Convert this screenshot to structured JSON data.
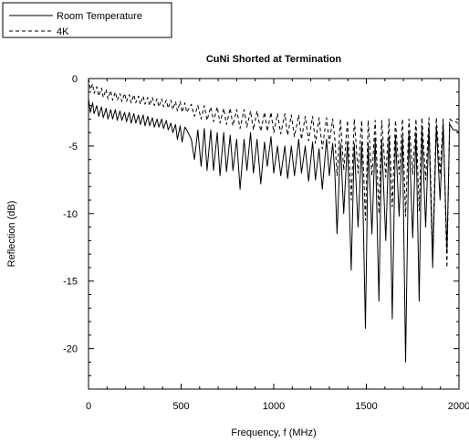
{
  "chart_data": {
    "type": "line",
    "title": "CuNi Shorted at Termination",
    "xlabel": "Frequency, f (MHz)",
    "ylabel": "Reflection (dB)",
    "xlim": [
      0,
      2000
    ],
    "ylim": [
      -23,
      0
    ],
    "x_ticks": [
      0,
      500,
      1000,
      1500,
      2000
    ],
    "x_tick_labels": [
      "0",
      "500",
      "1000",
      "1500",
      "2000"
    ],
    "y_ticks": [
      0,
      -5,
      -10,
      -15,
      -20
    ],
    "y_tick_labels": [
      "0",
      "-5",
      "-10",
      "-15",
      "-20"
    ],
    "grid": false,
    "legend_position": "top-left, outside plot",
    "series": [
      {
        "name": "Room Temperature",
        "line_style": "solid",
        "color": "#000000",
        "x": [
          0,
          10,
          22,
          30,
          45,
          55,
          70,
          80,
          95,
          105,
          120,
          130,
          145,
          155,
          170,
          180,
          195,
          205,
          220,
          230,
          245,
          255,
          270,
          280,
          295,
          305,
          320,
          330,
          345,
          355,
          370,
          380,
          395,
          405,
          420,
          430,
          445,
          455,
          470,
          480,
          495,
          505,
          520,
          530,
          555,
          572,
          590,
          608,
          625,
          640,
          660,
          675,
          695,
          710,
          730,
          745,
          765,
          780,
          800,
          818,
          840,
          855,
          875,
          890,
          910,
          930,
          950,
          965,
          985,
          1000,
          1020,
          1038,
          1060,
          1075,
          1095,
          1112,
          1135,
          1150,
          1170,
          1188,
          1210,
          1225,
          1245,
          1262,
          1285,
          1300,
          1318,
          1330,
          1342,
          1360,
          1378,
          1398,
          1418,
          1435,
          1455,
          1475,
          1495,
          1510,
          1530,
          1548,
          1568,
          1583,
          1605,
          1622,
          1640,
          1657,
          1677,
          1695,
          1712,
          1730,
          1750,
          1768,
          1785,
          1800,
          1820,
          1838,
          1858,
          1878,
          1898,
          1915,
          1935,
          1950,
          1970,
          1985,
          2000
        ],
        "y": [
          -1.5,
          -2.5,
          -1.8,
          -2.6,
          -2.0,
          -2.8,
          -2.1,
          -2.9,
          -2.2,
          -3.0,
          -2.3,
          -3.0,
          -2.3,
          -3.1,
          -2.4,
          -3.1,
          -2.5,
          -3.2,
          -2.5,
          -3.3,
          -2.6,
          -3.3,
          -2.7,
          -3.4,
          -2.7,
          -3.5,
          -2.8,
          -3.5,
          -2.9,
          -3.6,
          -3.0,
          -3.6,
          -3.0,
          -3.7,
          -3.1,
          -3.8,
          -3.3,
          -4.0,
          -3.4,
          -4.5,
          -3.5,
          -4.7,
          -3.6,
          -3.8,
          -4.5,
          -6.0,
          -3.8,
          -6.5,
          -3.7,
          -6.8,
          -3.8,
          -6.8,
          -4.0,
          -7.2,
          -4.0,
          -6.9,
          -4.2,
          -6.8,
          -4.5,
          -8.2,
          -4.5,
          -6.8,
          -4.0,
          -7.0,
          -4.5,
          -7.8,
          -4.7,
          -6.5,
          -4.3,
          -7.0,
          -5.0,
          -7.2,
          -5.0,
          -7.4,
          -5.0,
          -7.2,
          -4.5,
          -7.0,
          -5.0,
          -7.6,
          -4.7,
          -7.5,
          -5.2,
          -8.2,
          -4.5,
          -7.2,
          -4.8,
          -7.0,
          -11.5,
          -4.8,
          -10.0,
          -4.7,
          -14.2,
          -4.8,
          -11.0,
          -4.7,
          -18.5,
          -4.8,
          -11.5,
          -4.4,
          -16.5,
          -4.5,
          -12.0,
          -4.3,
          -17.8,
          -4.2,
          -10.2,
          -4.3,
          -21.0,
          -4.0,
          -11.8,
          -4.0,
          -16.5,
          -3.7,
          -11.0,
          -3.6,
          -14.0,
          -3.5,
          -9.0,
          -3.4,
          -12.8,
          -3.4,
          -3.8,
          -3.8,
          -4.0
        ]
      },
      {
        "name": "4K",
        "line_style": "dashed",
        "color": "#000000",
        "x": [
          0,
          10,
          22,
          30,
          45,
          55,
          70,
          80,
          95,
          105,
          120,
          130,
          145,
          155,
          170,
          180,
          195,
          205,
          220,
          230,
          245,
          255,
          270,
          280,
          295,
          305,
          320,
          330,
          345,
          355,
          370,
          380,
          395,
          405,
          420,
          430,
          445,
          455,
          470,
          480,
          495,
          505,
          520,
          530,
          555,
          572,
          590,
          608,
          625,
          640,
          660,
          675,
          695,
          710,
          730,
          745,
          765,
          780,
          800,
          818,
          840,
          855,
          875,
          890,
          910,
          930,
          950,
          965,
          985,
          1000,
          1020,
          1038,
          1060,
          1075,
          1095,
          1112,
          1135,
          1150,
          1170,
          1188,
          1210,
          1225,
          1245,
          1262,
          1285,
          1300,
          1318,
          1330,
          1342,
          1360,
          1378,
          1398,
          1418,
          1435,
          1455,
          1475,
          1495,
          1510,
          1530,
          1548,
          1568,
          1583,
          1605,
          1622,
          1640,
          1657,
          1677,
          1695,
          1712,
          1730,
          1750,
          1768,
          1785,
          1800,
          1820,
          1838,
          1858,
          1878,
          1898,
          1915,
          1935,
          1950,
          1970,
          1985,
          2000
        ],
        "y": [
          0.0,
          -0.8,
          -0.4,
          -1.1,
          -0.6,
          -1.3,
          -0.7,
          -1.4,
          -0.8,
          -1.5,
          -0.9,
          -1.6,
          -1.0,
          -1.6,
          -1.1,
          -1.7,
          -1.1,
          -1.7,
          -1.2,
          -1.8,
          -1.2,
          -1.8,
          -1.3,
          -1.9,
          -1.3,
          -1.9,
          -1.4,
          -2.0,
          -1.4,
          -2.0,
          -1.5,
          -2.1,
          -1.5,
          -2.1,
          -1.6,
          -2.2,
          -1.6,
          -2.3,
          -1.7,
          -2.4,
          -1.7,
          -2.5,
          -1.8,
          -2.5,
          -1.9,
          -2.8,
          -2.0,
          -3.0,
          -2.0,
          -3.1,
          -2.1,
          -3.2,
          -2.1,
          -3.3,
          -2.2,
          -3.4,
          -2.2,
          -3.5,
          -2.3,
          -3.7,
          -2.3,
          -3.6,
          -2.4,
          -3.8,
          -2.4,
          -3.9,
          -2.5,
          -3.9,
          -2.5,
          -4.0,
          -2.6,
          -4.1,
          -2.6,
          -4.2,
          -2.7,
          -4.3,
          -2.7,
          -4.5,
          -2.8,
          -4.6,
          -2.8,
          -4.8,
          -2.9,
          -5.2,
          -2.9,
          -4.8,
          -3.0,
          -4.5,
          -7.2,
          -3.0,
          -6.8,
          -3.1,
          -9.0,
          -3.0,
          -7.0,
          -3.1,
          -10.5,
          -3.1,
          -7.2,
          -3.1,
          -10.0,
          -3.1,
          -7.3,
          -3.0,
          -9.5,
          -3.1,
          -7.1,
          -3.0,
          -10.2,
          -3.0,
          -7.1,
          -3.0,
          -9.8,
          -2.9,
          -7.5,
          -2.9,
          -12.8,
          -2.9,
          -7.1,
          -3.0,
          -14.0,
          -3.0,
          -3.2,
          -3.2,
          -3.4
        ]
      }
    ]
  }
}
